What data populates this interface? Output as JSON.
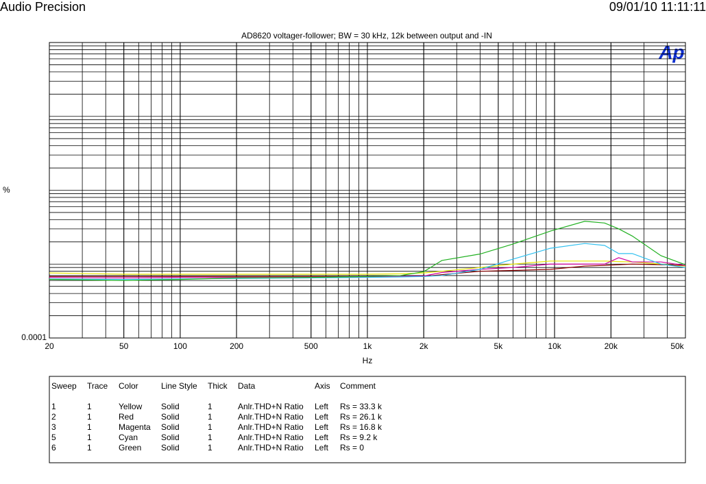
{
  "header": {
    "brand": "Audio Precision",
    "timestamp": "09/01/10 11:11:11",
    "logo": "Ap"
  },
  "chart_data": {
    "type": "line",
    "title": "AD8620 voltager-follower; BW = 30 kHz, 12k between output and -IN",
    "x_label": "Hz",
    "y_label": "%",
    "x_log": true,
    "y_log": true,
    "grid": true,
    "minor_grid": true,
    "xlim": [
      20,
      50000
    ],
    "ylim": [
      0.0001,
      1
    ],
    "xticks": [
      20,
      50,
      100,
      200,
      500,
      {
        "value": 1000,
        "label": "1k"
      },
      {
        "value": 2000,
        "label": "2k"
      },
      {
        "value": 5000,
        "label": "5k"
      },
      {
        "value": 10000,
        "label": "10k"
      },
      {
        "value": 20000,
        "label": "20k"
      },
      {
        "value": 50000,
        "label": "50k"
      }
    ],
    "yticks": [
      0.0001
    ],
    "x": [
      20,
      50,
      100,
      200,
      500,
      1000,
      1500,
      2000,
      2500,
      4000,
      6000,
      9500,
      14500,
      18500,
      22000,
      26000,
      37000,
      50000
    ],
    "series": [
      {
        "color": "#e6e600",
        "values": [
          0.00076,
          0.00073,
          0.00073,
          0.00073,
          0.00073,
          0.00073,
          0.00074,
          0.00076,
          0.0008,
          0.0009,
          0.001,
          0.0011,
          0.0011,
          0.0011,
          0.00108,
          0.00107,
          0.001,
          0.00094
        ]
      },
      {
        "color": "#8b0000",
        "values": [
          0.00068,
          0.00068,
          0.00068,
          0.00068,
          0.00068,
          0.00068,
          0.00068,
          0.00068,
          0.00072,
          0.0008,
          0.00082,
          0.00085,
          0.00094,
          0.00096,
          0.00098,
          0.001,
          0.00098,
          0.00096
        ]
      },
      {
        "color": "#d000a0",
        "values": [
          0.00066,
          0.00065,
          0.00066,
          0.00066,
          0.00066,
          0.00067,
          0.00068,
          0.00069,
          0.00077,
          0.00085,
          0.0009,
          0.001,
          0.001,
          0.001,
          0.00122,
          0.00107,
          0.00107,
          0.00096
        ]
      },
      {
        "color": "#30c0f0",
        "values": [
          0.00063,
          0.00062,
          0.00063,
          0.00064,
          0.00065,
          0.00066,
          0.00067,
          0.00068,
          0.0007,
          0.00085,
          0.00117,
          0.00164,
          0.0019,
          0.00179,
          0.00139,
          0.00139,
          0.001,
          0.0009
        ]
      },
      {
        "color": "#20b020",
        "values": [
          0.00062,
          0.0006,
          0.00062,
          0.00065,
          0.00066,
          0.00068,
          0.0007,
          0.00079,
          0.00112,
          0.00137,
          0.00187,
          0.0028,
          0.0038,
          0.0036,
          0.003,
          0.0024,
          0.0013,
          0.00098
        ]
      }
    ]
  },
  "table": {
    "columns": [
      "Sweep",
      "Trace",
      "Color",
      "Line Style",
      "Thick",
      "Data",
      "Axis",
      "Comment"
    ],
    "rows": [
      [
        "1",
        "1",
        "Yellow",
        "Solid",
        "1",
        "Anlr.THD+N Ratio",
        "Left",
        "Rs = 33.3 k"
      ],
      [
        "2",
        "1",
        "Red",
        "Solid",
        "1",
        "Anlr.THD+N Ratio",
        "Left",
        "Rs = 26.1 k"
      ],
      [
        "3",
        "1",
        "Magenta",
        "Solid",
        "1",
        "Anlr.THD+N Ratio",
        "Left",
        "Rs = 16.8 k"
      ],
      [
        "5",
        "1",
        "Cyan",
        "Solid",
        "1",
        "Anlr.THD+N Ratio",
        "Left",
        "Rs = 9.2 k"
      ],
      [
        "6",
        "1",
        "Green",
        "Solid",
        "1",
        "Anlr.THD+N Ratio",
        "Left",
        "Rs = 0"
      ]
    ]
  }
}
